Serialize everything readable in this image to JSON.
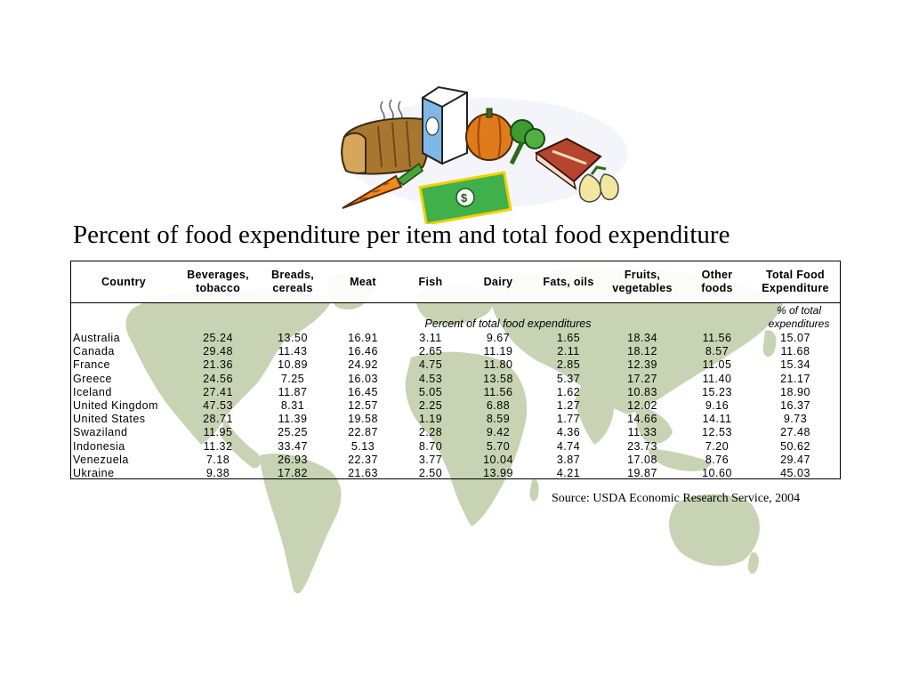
{
  "slide": {
    "title": "Percent of food expenditure per item and total food expenditure",
    "source": "Source: USDA Economic Research Service, 2004",
    "map_color": "#c7d3b3",
    "clipart_items": [
      "bread-icon",
      "milk-carton-icon",
      "pumpkin-icon",
      "broccoli-icon",
      "meat-icon",
      "pears-icon",
      "carrot-icon",
      "dollar-bill-icon"
    ]
  },
  "table": {
    "headers": [
      "Country",
      "Beverages,\ntobacco",
      "Breads,\ncereals",
      "Meat",
      "Fish",
      "Dairy",
      "Fats, oils",
      "Fruits,\nvegetables",
      "Other\nfoods",
      "Total Food\nExpenditure"
    ],
    "subheader": "Percent of total food expenditures",
    "total_unit": "% of total\nexpenditures",
    "rows": [
      [
        "Australia",
        "25.24",
        "13.50",
        "16.91",
        "3.11",
        "9.67",
        "1.65",
        "18.34",
        "11.56",
        "15.07"
      ],
      [
        "Canada",
        "29.48",
        "11.43",
        "16.46",
        "2.65",
        "11.19",
        "2.11",
        "18.12",
        "8.57",
        "11.68"
      ],
      [
        "France",
        "21.36",
        "10.89",
        "24.92",
        "4.75",
        "11.80",
        "2.85",
        "12.39",
        "11.05",
        "15.34"
      ],
      [
        "Greece",
        "24.56",
        "7.25",
        "16.03",
        "4.53",
        "13.58",
        "5.37",
        "17.27",
        "11.40",
        "21.17"
      ],
      [
        "Iceland",
        "27.41",
        "11.87",
        "16.45",
        "5.05",
        "11.56",
        "1.62",
        "10.83",
        "15.23",
        "18.90"
      ],
      [
        "United Kingdom",
        "47.53",
        "8.31",
        "12.57",
        "2.25",
        "6.88",
        "1.27",
        "12.02",
        "9.16",
        "16.37"
      ],
      [
        "United States",
        "28.71",
        "11.39",
        "19.58",
        "1.19",
        "8.59",
        "1.77",
        "14.66",
        "14.11",
        "9.73"
      ],
      [
        "Swaziland",
        "11.95",
        "25.25",
        "22.87",
        "2.28",
        "9.42",
        "4.36",
        "11.33",
        "12.53",
        "27.48"
      ],
      [
        "Indonesia",
        "11.32",
        "33.47",
        "5.13",
        "8.70",
        "5.70",
        "4.74",
        "23.73",
        "7.20",
        "50.62"
      ],
      [
        "Venezuela",
        "7.18",
        "26.93",
        "22.37",
        "3.77",
        "10.04",
        "3.87",
        "17.08",
        "8.76",
        "29.47"
      ],
      [
        "Ukraine",
        "9.38",
        "17.82",
        "21.63",
        "2.50",
        "13.99",
        "4.21",
        "19.87",
        "10.60",
        "45.03"
      ]
    ]
  }
}
